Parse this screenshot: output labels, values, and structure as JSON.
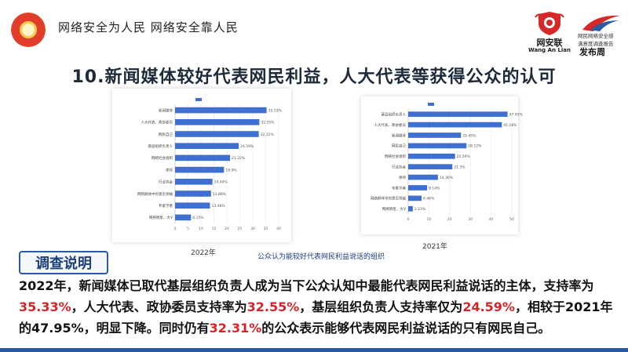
{
  "header": {
    "slogan": "网络安全为人民 网络安全靠人民",
    "wal_name": "网安联",
    "wal_en": "Wang An Lian",
    "report_line1": "网民网络安全感",
    "report_line2": "满意度调查报告",
    "report_pub": "发布周"
  },
  "title": "10.新闻媒体较好代表网民利益，人大代表等获得公众的认可",
  "captions": {
    "year_2022": "2022年",
    "year_2021": "2021年",
    "center": "公众认为能较好代表网民利益说话的组织"
  },
  "colors": {
    "bar": "#3f6fd0",
    "accent": "#2a5ba0",
    "highlight": "#d8232a"
  },
  "chart_data": [
    {
      "type": "bar",
      "orientation": "horizontal",
      "year": "2022年",
      "title": "",
      "categories": [
        "新闻媒体",
        "人大代表、政协委员",
        "网民自己",
        "基层组织负责人",
        "网络社会组织",
        "律师",
        "行业协会",
        "网络群体中的意见领袖",
        "专家学者",
        "网络明星、大V"
      ],
      "values": [
        35.33,
        32.55,
        32.31,
        24.59,
        21.22,
        18.9,
        14.44,
        13.88,
        13.48,
        6.15
      ],
      "value_labels": [
        "35.33%",
        "32.55%",
        "32.31%",
        "24.59%",
        "21.22%",
        "18.9%",
        "14.44%",
        "13.88%",
        "13.48%",
        "6.15%"
      ],
      "xlim": [
        0,
        40
      ],
      "xticks": [
        "0",
        "5",
        "10",
        "15",
        "20",
        "25",
        "30",
        "35",
        "40"
      ]
    },
    {
      "type": "bar",
      "orientation": "horizontal",
      "year": "2021年",
      "title": "",
      "categories": [
        "基层组织负责人",
        "人大代表、政协委员",
        "新闻媒体",
        "网民自己",
        "网络社会组织",
        "行业协会",
        "律师",
        "专家学者",
        "网络群体中的意见领袖",
        "网络明星、大V"
      ],
      "values": [
        47.95,
        45.18,
        25.45,
        28.12,
        22.59,
        21.3,
        14.36,
        9.14,
        6.46,
        2.23
      ],
      "value_labels": [
        "47.95%",
        "45.18%",
        "25.45%",
        "28.12%",
        "22.59%",
        "21.3%",
        "14.36%",
        "9.14%",
        "6.46%",
        "2.23%"
      ],
      "xlim": [
        0,
        50
      ],
      "xticks": [
        "0",
        "10",
        "20",
        "30",
        "40",
        "50"
      ]
    }
  ],
  "explain": {
    "label": "调查说明",
    "p1": "2022年，新闻媒体已取代基层组织负责人成为当下公众认知中最能代表网民利益说话的主体，支持率为",
    "v1": "35.33%",
    "p2": "，人大代表、政协委员支持率为",
    "v2": "32.55%",
    "p3": "，基层组织负责人支持率仅为",
    "v3": "24.59%",
    "p4": "，相较于2021年的47.95%，明显下降。同时仍有",
    "v4": "32.31%",
    "p5": "的公众表示能够代表网民利益说话的只有网民自己。"
  }
}
